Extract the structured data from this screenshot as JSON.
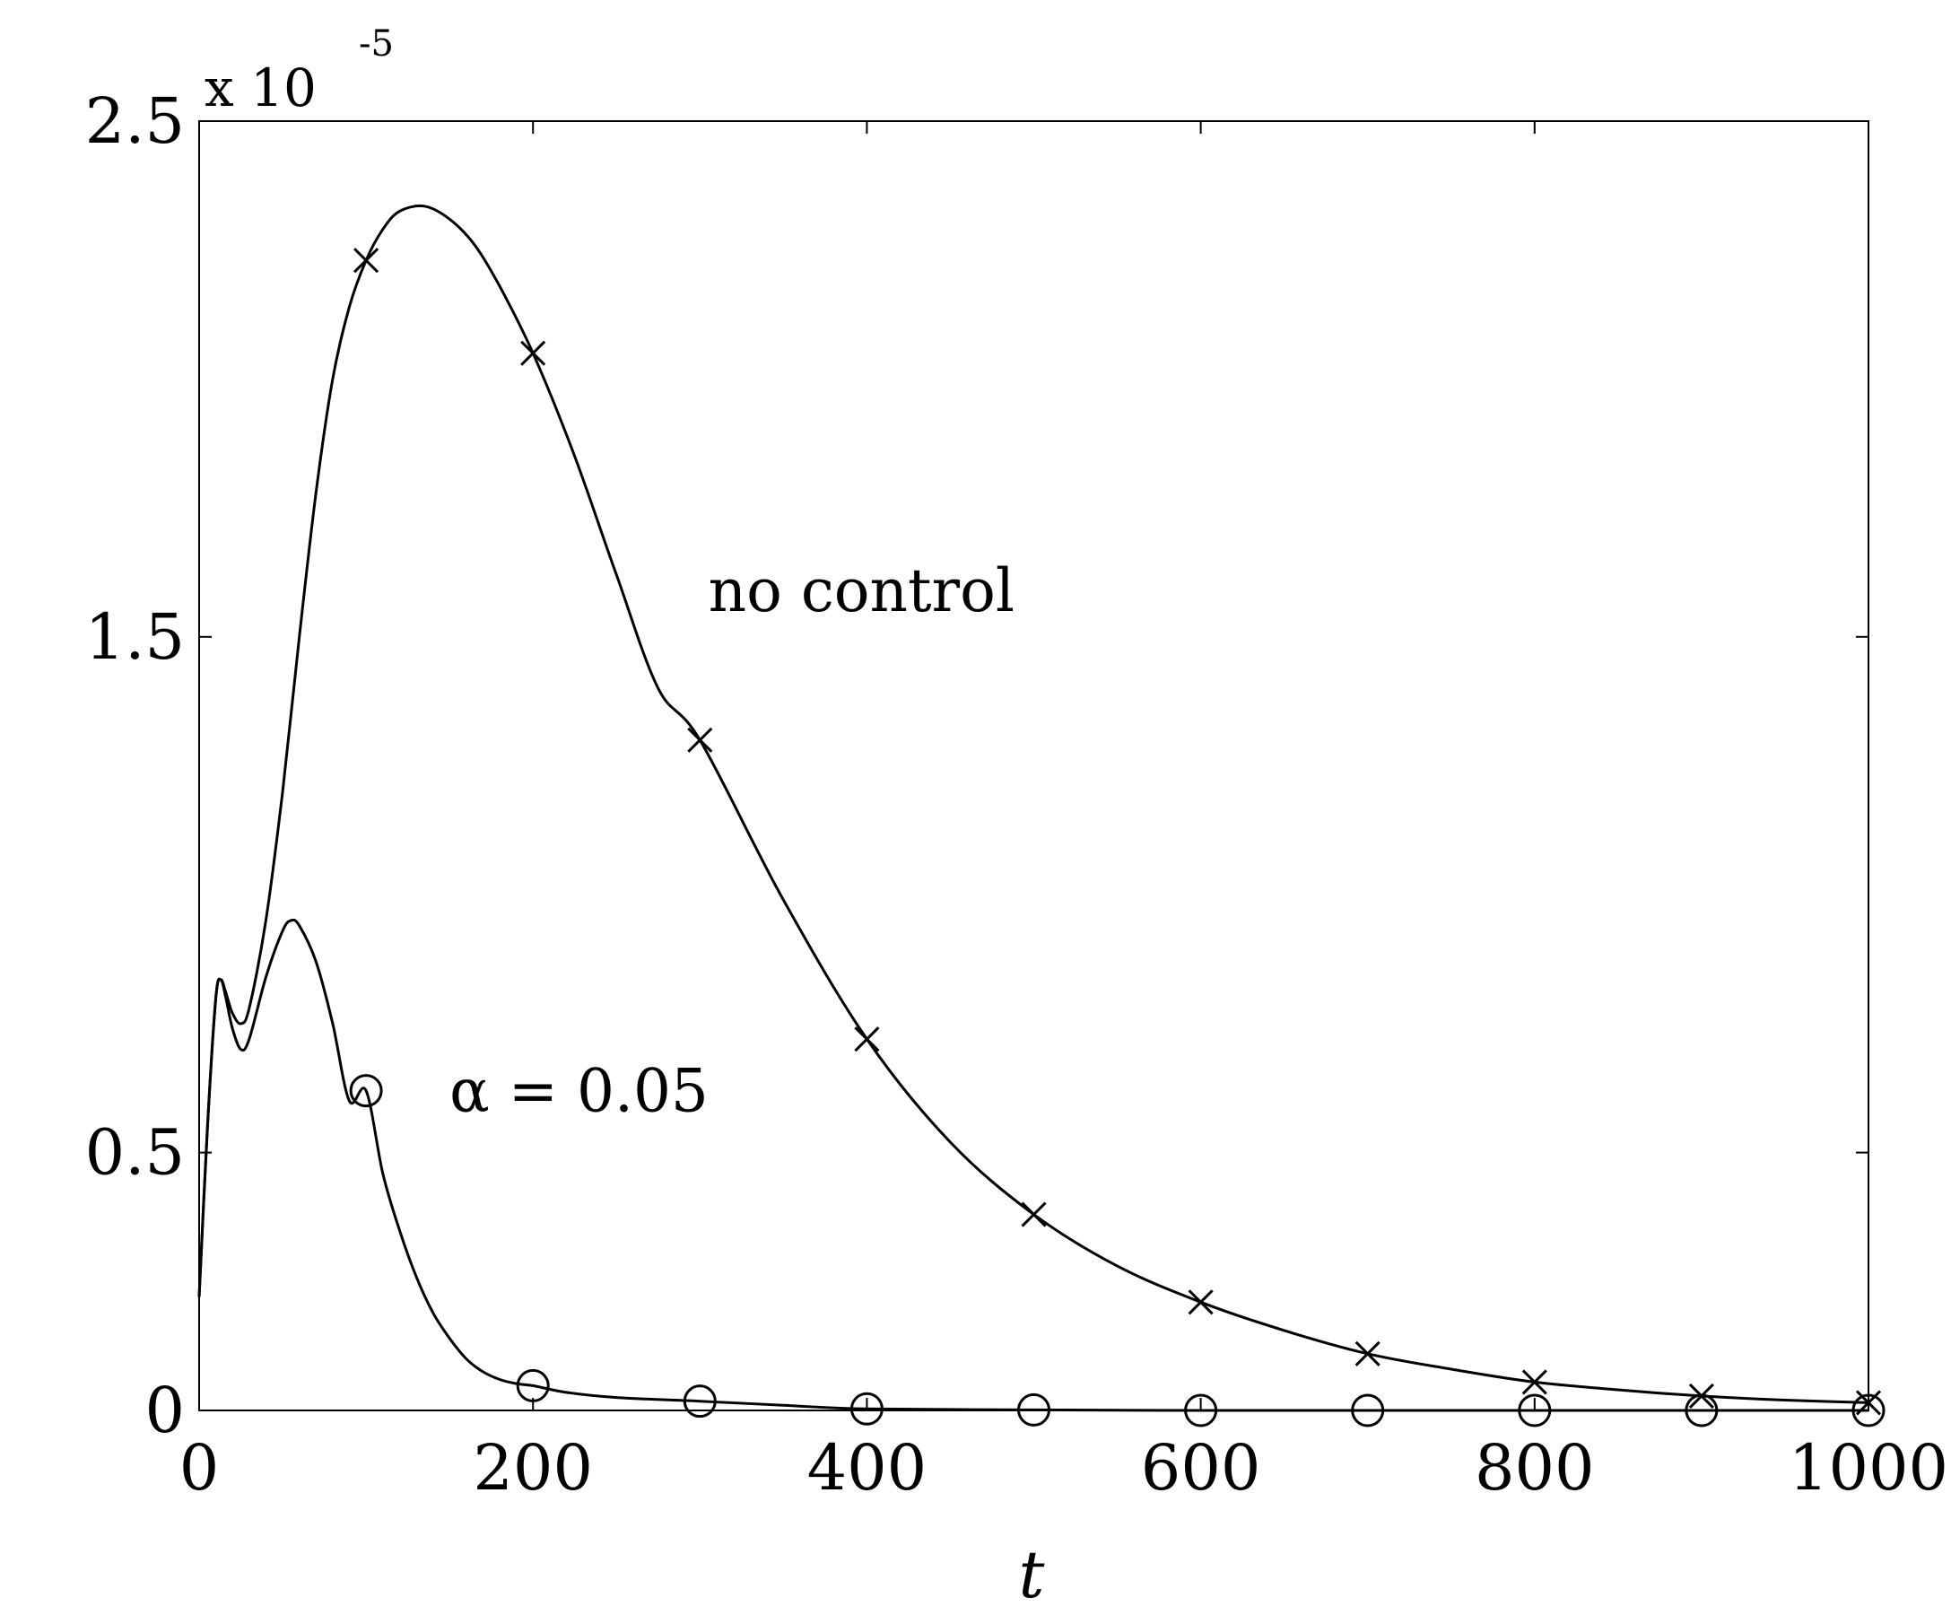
{
  "chart_data": {
    "type": "line",
    "xlabel": "t",
    "ylabel": "",
    "xlim": [
      0,
      1000
    ],
    "ylim": [
      0,
      2.5
    ],
    "y_exponent_base": "x 10",
    "y_exponent_power": "-5",
    "x_ticks": [
      0,
      200,
      400,
      600,
      800,
      1000
    ],
    "x_tick_labels": [
      "0",
      "200",
      "400",
      "600",
      "800",
      "1000"
    ],
    "y_ticks": [
      0,
      0.5,
      1.5,
      2.5
    ],
    "y_tick_labels": [
      "0",
      "0.5",
      "1.5",
      "2.5"
    ],
    "grid": false,
    "series": [
      {
        "name": "no control",
        "marker": "x",
        "color": "#000000",
        "x": [
          0,
          5,
          10,
          13,
          16,
          20,
          25,
          30,
          40,
          50,
          60,
          70,
          80,
          90,
          100,
          110,
          120,
          135,
          150,
          165,
          180,
          200,
          225,
          250,
          275,
          300,
          350,
          400,
          450,
          500,
          550,
          600,
          650,
          700,
          750,
          800,
          850,
          900,
          950,
          1000
        ],
        "y": [
          0.22,
          0.55,
          0.8,
          0.835,
          0.81,
          0.77,
          0.75,
          0.78,
          0.95,
          1.2,
          1.5,
          1.78,
          2.0,
          2.14,
          2.23,
          2.29,
          2.325,
          2.335,
          2.31,
          2.26,
          2.18,
          2.05,
          1.85,
          1.62,
          1.4,
          1.3,
          0.99,
          0.72,
          0.52,
          0.38,
          0.28,
          0.21,
          0.155,
          0.11,
          0.08,
          0.055,
          0.04,
          0.028,
          0.02,
          0.015
        ],
        "markers_x": [
          100,
          200,
          300,
          400,
          500,
          600,
          700,
          800,
          900,
          1000
        ],
        "markers_y": [
          2.23,
          2.05,
          1.3,
          0.72,
          0.38,
          0.21,
          0.11,
          0.055,
          0.028,
          0.015
        ]
      },
      {
        "name": "α = 0.05",
        "marker": "o",
        "color": "#000000",
        "x": [
          0,
          5,
          10,
          13,
          16,
          20,
          25,
          30,
          40,
          50,
          55,
          60,
          70,
          80,
          90,
          100,
          110,
          120,
          130,
          140,
          150,
          160,
          170,
          180,
          190,
          200,
          220,
          250,
          300,
          350,
          400,
          500,
          600,
          700,
          800,
          900,
          1000
        ],
        "y": [
          0.22,
          0.55,
          0.8,
          0.835,
          0.8,
          0.74,
          0.7,
          0.72,
          0.84,
          0.93,
          0.95,
          0.94,
          0.87,
          0.75,
          0.6,
          0.62,
          0.46,
          0.35,
          0.26,
          0.19,
          0.14,
          0.1,
          0.075,
          0.06,
          0.052,
          0.048,
          0.035,
          0.025,
          0.018,
          0.01,
          0.003,
          0.001,
          0.0,
          0.0,
          0.0,
          0.0,
          0.0
        ],
        "markers_x": [
          100,
          200,
          300,
          400,
          500,
          600,
          700,
          800,
          900,
          1000
        ],
        "markers_y": [
          0.62,
          0.048,
          0.018,
          0.003,
          0.001,
          0.0,
          0.0,
          0.0,
          0.0,
          0.0
        ]
      }
    ],
    "annotations": [
      {
        "text": "no control",
        "x": 305,
        "y": 1.55
      },
      {
        "text": "α = 0.05",
        "x": 150,
        "y": 0.58
      }
    ]
  }
}
